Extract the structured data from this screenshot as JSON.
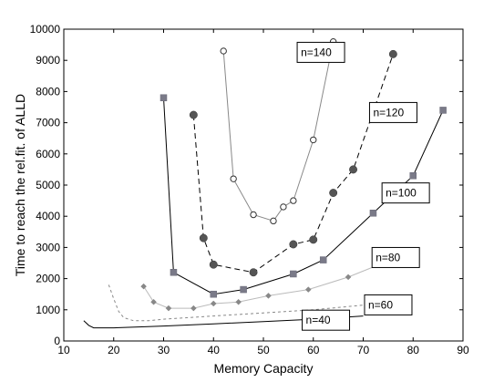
{
  "chart_data": {
    "type": "line",
    "xlabel": "Memory Capacity",
    "ylabel": "Time to reach the rel.fit. of ALLD",
    "xlim": [
      10,
      90
    ],
    "ylim": [
      0,
      10000
    ],
    "xticks": [
      10,
      20,
      30,
      40,
      50,
      60,
      70,
      80,
      90
    ],
    "yticks": [
      0,
      1000,
      2000,
      3000,
      4000,
      5000,
      6000,
      7000,
      8000,
      9000,
      10000
    ],
    "grid": false,
    "series": [
      {
        "name": "n=140",
        "color": "#888888",
        "line_style": "solid",
        "marker": "open-circle",
        "x": [
          42,
          44,
          48,
          52,
          54,
          56,
          60,
          64
        ],
        "y": [
          9300,
          5200,
          4050,
          3850,
          4300,
          4500,
          6450,
          9600
        ]
      },
      {
        "name": "n=120",
        "color": "#000000",
        "line_style": "dashed",
        "marker": "filled-circle",
        "x": [
          36,
          38,
          40,
          48,
          56,
          60,
          64,
          68,
          76
        ],
        "y": [
          7250,
          3300,
          2450,
          2200,
          3100,
          3250,
          4750,
          5500,
          9200
        ]
      },
      {
        "name": "n=100",
        "color": "#000000",
        "line_style": "solid",
        "marker": "square",
        "x": [
          30,
          32,
          40,
          46,
          56,
          62,
          72,
          80,
          86
        ],
        "y": [
          7800,
          2200,
          1500,
          1650,
          2150,
          2600,
          4100,
          5300,
          7400
        ]
      },
      {
        "name": "n=80",
        "color": "#bbbbbb",
        "line_style": "solid",
        "marker": "diamond",
        "x": [
          26,
          28,
          31,
          36,
          40,
          45,
          51,
          59,
          67,
          74
        ],
        "y": [
          1750,
          1250,
          1050,
          1050,
          1200,
          1250,
          1450,
          1650,
          2050,
          2500
        ]
      },
      {
        "name": "n=60",
        "color": "#888888",
        "line_style": "dashed",
        "marker": "none",
        "x": [
          19,
          20,
          21,
          22,
          24,
          27,
          30,
          40,
          50,
          60,
          70,
          74
        ],
        "y": [
          1800,
          1350,
          950,
          750,
          650,
          650,
          700,
          800,
          900,
          1000,
          1150,
          1250
        ]
      },
      {
        "name": "n=40",
        "color": "#000000",
        "line_style": "solid",
        "marker": "none",
        "x": [
          14,
          15,
          16,
          20,
          25,
          30,
          40,
          50,
          60,
          70
        ],
        "y": [
          650,
          500,
          420,
          420,
          450,
          480,
          550,
          620,
          700,
          800
        ]
      }
    ],
    "annotations": [
      {
        "text": "n=140",
        "x": 57.5,
        "y": 9140
      },
      {
        "text": "n=120",
        "x": 72,
        "y": 7210
      },
      {
        "text": "n=100",
        "x": 74.5,
        "y": 4630
      },
      {
        "text": "n=80",
        "x": 72.5,
        "y": 2560
      },
      {
        "text": "n=60",
        "x": 71,
        "y": 1040
      },
      {
        "text": "n=40",
        "x": 58.5,
        "y": 550
      }
    ]
  }
}
